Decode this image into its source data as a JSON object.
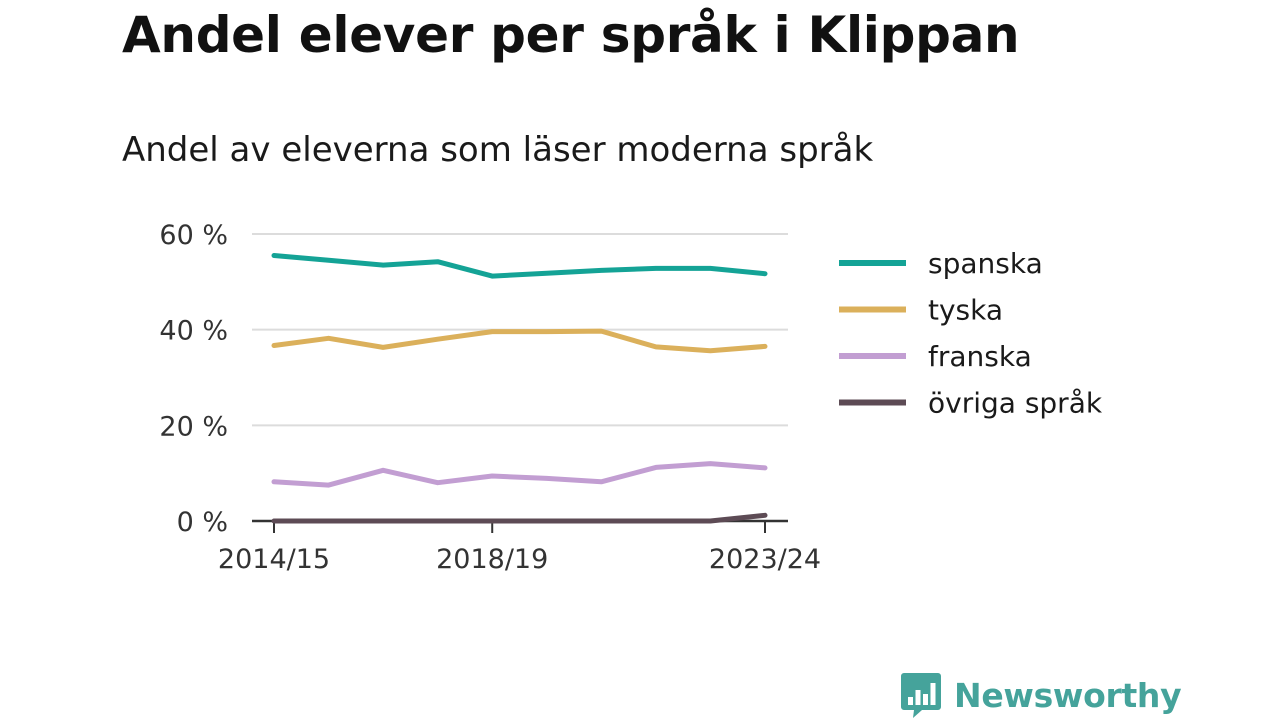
{
  "title": "Andel elever per språk i Klippan",
  "subtitle": "Andel av eleverna som läser moderna språk",
  "brand": {
    "name": "Newsworthy",
    "icon": "bar-chart-speech-bubble-icon",
    "color": "#45a39b"
  },
  "chart_data": {
    "type": "line",
    "x": [
      "2014/15",
      "2015/16",
      "2016/17",
      "2017/18",
      "2018/19",
      "2019/20",
      "2020/21",
      "2021/22",
      "2022/23",
      "2023/24"
    ],
    "x_tick_labels": [
      "2014/15",
      "2018/19",
      "2023/24"
    ],
    "y_ticks": [
      0,
      20,
      40,
      60
    ],
    "y_tick_labels": [
      "0 %",
      "20 %",
      "40 %",
      "60 %"
    ],
    "ylim": [
      0,
      60
    ],
    "grid": true,
    "legend_position": "right",
    "series": [
      {
        "name": "spanska",
        "color": "#14a396",
        "values": [
          55.5,
          54.5,
          53.5,
          54.2,
          51.2,
          51.8,
          52.4,
          52.8,
          52.8,
          51.7
        ]
      },
      {
        "name": "tyska",
        "color": "#dbb05b",
        "values": [
          36.7,
          38.2,
          36.3,
          38.0,
          39.6,
          39.6,
          39.7,
          36.4,
          35.6,
          36.5
        ]
      },
      {
        "name": "franska",
        "color": "#c29ed2",
        "values": [
          8.2,
          7.5,
          10.6,
          8.0,
          9.4,
          8.9,
          8.2,
          11.2,
          12.0,
          11.1
        ]
      },
      {
        "name": "övriga språk",
        "color": "#5d4b55",
        "values": [
          0.0,
          0.0,
          0.0,
          0.0,
          0.0,
          0.0,
          0.0,
          0.0,
          0.0,
          1.2
        ]
      }
    ]
  }
}
